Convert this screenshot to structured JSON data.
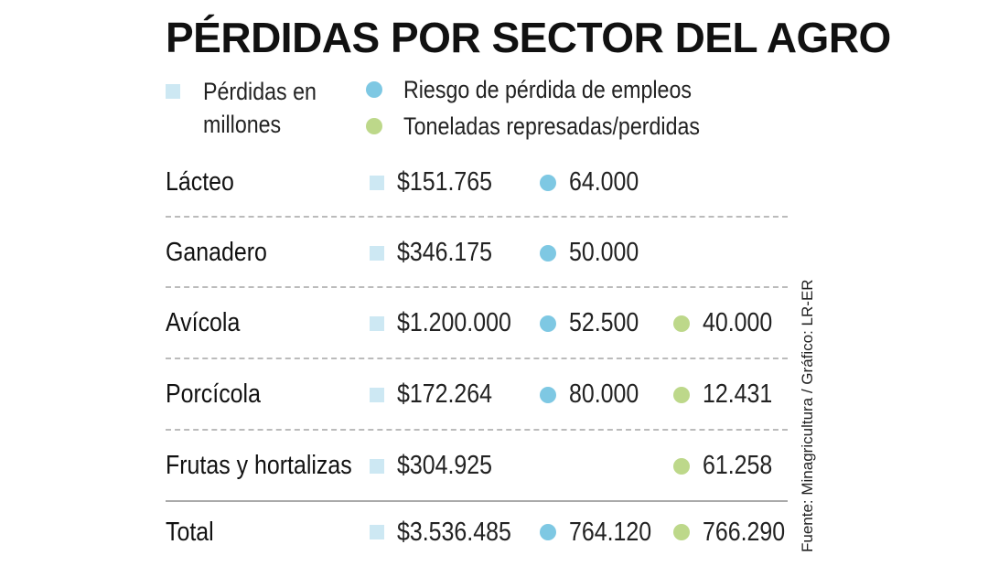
{
  "title": "PÉRDIDAS POR SECTOR DEL AGRO",
  "source": "Fuente: Minagricultura / Gráfico: LR-ER",
  "chart_data": {
    "type": "table",
    "title": "PÉRDIDAS POR SECTOR DEL AGRO",
    "legend": [
      {
        "label_line1": "Pérdidas en",
        "label_line2": "millones",
        "marker": "square",
        "color": "#cde8f3"
      },
      {
        "label": "Riesgo de pérdida de empleos",
        "marker": "circle",
        "color": "#7ec8e3"
      },
      {
        "label": "Toneladas represadas/perdidas",
        "marker": "circle",
        "color": "#bdd88a"
      }
    ],
    "rows": [
      {
        "sector": "Lácteo",
        "losses": "$151.765",
        "jobs": "64.000",
        "tons": ""
      },
      {
        "sector": "Ganadero",
        "losses": "$346.175",
        "jobs": "50.000",
        "tons": ""
      },
      {
        "sector": "Avícola",
        "losses": "$1.200.000",
        "jobs": "52.500",
        "tons": "40.000"
      },
      {
        "sector": "Porcícola",
        "losses": "$172.264",
        "jobs": "80.000",
        "tons": "12.431"
      },
      {
        "sector": "Frutas y hortalizas",
        "losses": "$304.925",
        "jobs": "",
        "tons": "61.258"
      }
    ],
    "total": {
      "sector": "Total",
      "losses": "$3.536.485",
      "jobs": "764.120",
      "tons": "766.290"
    }
  }
}
